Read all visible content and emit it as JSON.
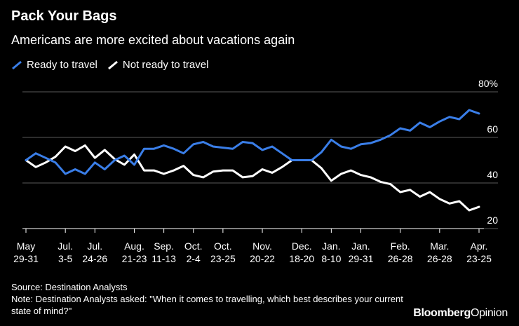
{
  "chart_data": {
    "type": "line",
    "title": "Pack Your Bags",
    "subtitle": "Americans are more excited about vacations again",
    "xlabel": "",
    "ylabel": "",
    "ylim": [
      20,
      80
    ],
    "y_ticks": [
      {
        "value": 80,
        "label": "80%"
      },
      {
        "value": 60,
        "label": "60"
      },
      {
        "value": 40,
        "label": "40"
      },
      {
        "value": 20,
        "label": "20"
      }
    ],
    "x_ticks": [
      {
        "index": 0,
        "label1": "May",
        "label2": "29-31"
      },
      {
        "index": 4,
        "label1": "Jul.",
        "label2": "3-5"
      },
      {
        "index": 7,
        "label1": "Jul.",
        "label2": "24-26"
      },
      {
        "index": 11,
        "label1": "Aug.",
        "label2": "21-23"
      },
      {
        "index": 14,
        "label1": "Sep.",
        "label2": "11-13"
      },
      {
        "index": 17,
        "label1": "Oct.",
        "label2": "2-4"
      },
      {
        "index": 20,
        "label1": "Oct.",
        "label2": "23-25"
      },
      {
        "index": 24,
        "label1": "Nov.",
        "label2": "20-22"
      },
      {
        "index": 28,
        "label1": "Dec.",
        "label2": "18-20"
      },
      {
        "index": 31,
        "label1": "Jan.",
        "label2": "8-10"
      },
      {
        "index": 34,
        "label1": "Jan.",
        "label2": "29-31"
      },
      {
        "index": 38,
        "label1": "Feb.",
        "label2": "26-28"
      },
      {
        "index": 42,
        "label1": "Mar.",
        "label2": "26-28"
      },
      {
        "index": 46,
        "label1": "Apr.",
        "label2": "23-25"
      }
    ],
    "series": [
      {
        "name": "Ready to travel",
        "color": "#3a7ee8",
        "values": [
          50,
          53,
          51,
          49,
          44,
          46,
          44,
          49,
          46,
          50,
          52,
          48,
          55,
          55,
          56.5,
          55,
          53,
          57,
          58,
          56,
          55.5,
          55,
          58,
          57.5,
          54.5,
          56,
          53,
          50,
          50,
          50,
          53.5,
          59,
          56,
          55,
          57,
          57.5,
          59,
          61,
          64,
          63,
          66.5,
          64.5,
          67,
          69,
          68,
          72,
          70.5
        ]
      },
      {
        "name": "Not ready to travel",
        "color": "#ffffff",
        "values": [
          50,
          47,
          49,
          51.5,
          56,
          54,
          56.5,
          51,
          54.5,
          50.5,
          48,
          52.5,
          45.5,
          45.5,
          44,
          45.5,
          47.5,
          43.5,
          42.5,
          45,
          45.5,
          45.5,
          42.5,
          43,
          46,
          44.5,
          47,
          50,
          50,
          50,
          46.5,
          41,
          44,
          45.5,
          43.5,
          42.5,
          40.5,
          39.5,
          36,
          37,
          34,
          36,
          33,
          31,
          32,
          28,
          29.5
        ]
      }
    ]
  },
  "footer": {
    "source": "Source: Destination Analysts",
    "note": "Note: Destination Analysts asked: \"When it comes to travelling, which best describes your current state of mind?\"",
    "brand_main": "Bloomberg",
    "brand_secondary": "Opinion"
  }
}
